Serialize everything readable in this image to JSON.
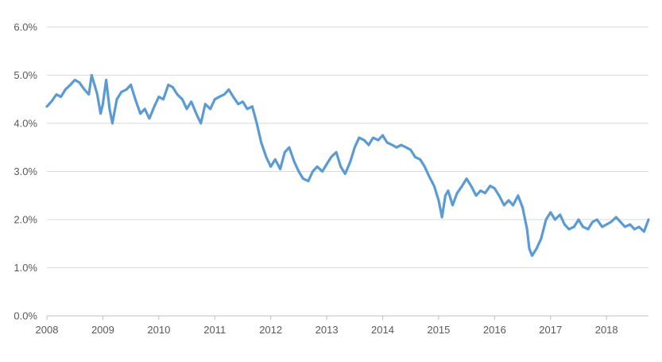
{
  "chart_data": {
    "type": "line",
    "title": "",
    "xlabel": "",
    "ylabel": "",
    "xlim": [
      2008.0,
      2018.75
    ],
    "ylim": [
      0,
      6
    ],
    "x_ticks": [
      2008,
      2009,
      2010,
      2011,
      2012,
      2013,
      2014,
      2015,
      2016,
      2017,
      2018
    ],
    "x_tick_labels": [
      "2008",
      "2009",
      "2010",
      "2011",
      "2012",
      "2013",
      "2014",
      "2015",
      "2016",
      "2017",
      "2018"
    ],
    "y_ticks": [
      0,
      1,
      2,
      3,
      4,
      5,
      6
    ],
    "y_tick_labels": [
      "0.0%",
      "1.0%",
      "2.0%",
      "3.0%",
      "4.0%",
      "5.0%",
      "6.0%"
    ],
    "grid": true,
    "legend": "none",
    "line_color": "#5b9bd5",
    "series": [
      {
        "x": [
          2008.0,
          2008.08,
          2008.17,
          2008.25,
          2008.33,
          2008.42,
          2008.5,
          2008.58,
          2008.67,
          2008.75,
          2008.8,
          2008.85,
          2008.9,
          2008.96,
          2009.0,
          2009.06,
          2009.12,
          2009.17,
          2009.25,
          2009.33,
          2009.42,
          2009.5,
          2009.58,
          2009.67,
          2009.75,
          2009.83,
          2009.92,
          2010.0,
          2010.08,
          2010.17,
          2010.25,
          2010.33,
          2010.42,
          2010.5,
          2010.58,
          2010.67,
          2010.75,
          2010.83,
          2010.92,
          2011.0,
          2011.08,
          2011.17,
          2011.25,
          2011.33,
          2011.42,
          2011.5,
          2011.58,
          2011.67,
          2011.75,
          2011.83,
          2011.92,
          2012.0,
          2012.08,
          2012.17,
          2012.25,
          2012.33,
          2012.42,
          2012.5,
          2012.58,
          2012.67,
          2012.75,
          2012.83,
          2012.92,
          2013.0,
          2013.08,
          2013.17,
          2013.25,
          2013.33,
          2013.42,
          2013.5,
          2013.58,
          2013.67,
          2013.75,
          2013.83,
          2013.92,
          2014.0,
          2014.08,
          2014.17,
          2014.25,
          2014.33,
          2014.42,
          2014.5,
          2014.58,
          2014.67,
          2014.75,
          2014.83,
          2014.92,
          2015.0,
          2015.06,
          2015.12,
          2015.17,
          2015.25,
          2015.33,
          2015.42,
          2015.5,
          2015.58,
          2015.67,
          2015.75,
          2015.83,
          2015.92,
          2016.0,
          2016.08,
          2016.17,
          2016.25,
          2016.33,
          2016.42,
          2016.5,
          2016.58,
          2016.62,
          2016.67,
          2016.75,
          2016.83,
          2016.92,
          2017.0,
          2017.08,
          2017.17,
          2017.25,
          2017.33,
          2017.42,
          2017.5,
          2017.58,
          2017.67,
          2017.75,
          2017.83,
          2017.92,
          2018.0,
          2018.08,
          2018.17,
          2018.25,
          2018.33,
          2018.42,
          2018.5,
          2018.58,
          2018.67,
          2018.75
        ],
        "y": [
          4.35,
          4.45,
          4.6,
          4.55,
          4.7,
          4.8,
          4.9,
          4.85,
          4.7,
          4.6,
          5.0,
          4.8,
          4.6,
          4.2,
          4.4,
          4.9,
          4.3,
          4.0,
          4.5,
          4.65,
          4.7,
          4.8,
          4.5,
          4.2,
          4.3,
          4.1,
          4.35,
          4.55,
          4.5,
          4.8,
          4.75,
          4.6,
          4.5,
          4.3,
          4.45,
          4.2,
          4.0,
          4.4,
          4.3,
          4.5,
          4.55,
          4.6,
          4.7,
          4.55,
          4.4,
          4.45,
          4.3,
          4.35,
          4.0,
          3.6,
          3.3,
          3.1,
          3.25,
          3.05,
          3.4,
          3.5,
          3.2,
          3.0,
          2.85,
          2.8,
          3.0,
          3.1,
          3.0,
          3.15,
          3.3,
          3.4,
          3.1,
          2.95,
          3.2,
          3.5,
          3.7,
          3.65,
          3.55,
          3.7,
          3.65,
          3.75,
          3.6,
          3.55,
          3.5,
          3.55,
          3.5,
          3.45,
          3.3,
          3.25,
          3.1,
          2.9,
          2.7,
          2.4,
          2.05,
          2.5,
          2.6,
          2.3,
          2.55,
          2.7,
          2.85,
          2.7,
          2.5,
          2.6,
          2.55,
          2.7,
          2.65,
          2.5,
          2.3,
          2.4,
          2.3,
          2.5,
          2.25,
          1.8,
          1.4,
          1.25,
          1.4,
          1.6,
          2.0,
          2.15,
          2.0,
          2.1,
          1.9,
          1.8,
          1.85,
          2.0,
          1.85,
          1.8,
          1.95,
          2.0,
          1.85,
          1.9,
          1.95,
          2.05,
          1.95,
          1.85,
          1.9,
          1.8,
          1.85,
          1.75,
          2.0
        ]
      }
    ]
  }
}
